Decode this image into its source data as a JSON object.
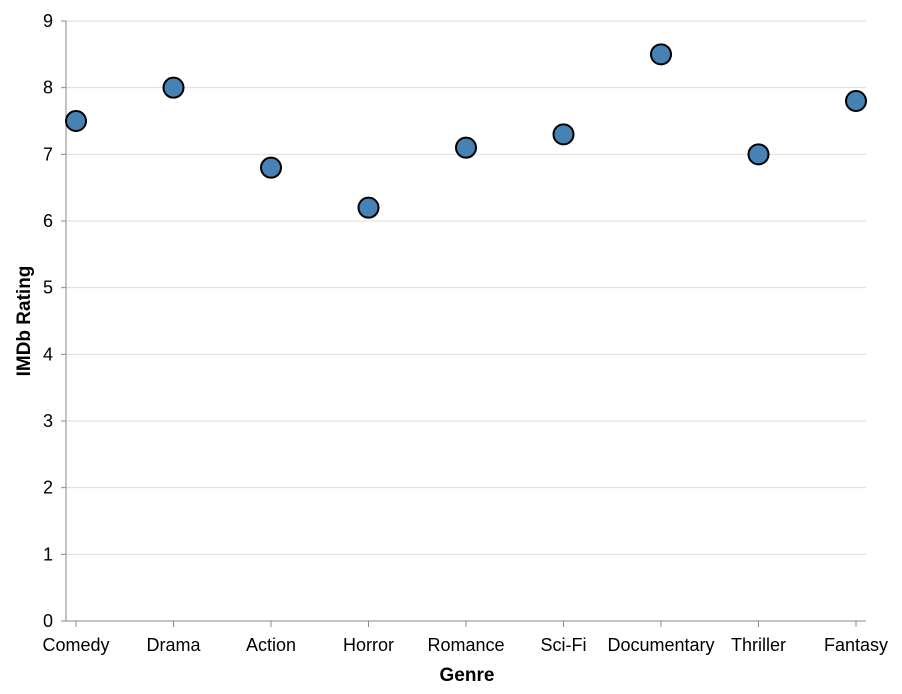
{
  "chart_data": {
    "type": "scatter",
    "title": "",
    "xlabel": "Genre",
    "ylabel": "IMDb Rating",
    "categories": [
      "Comedy",
      "Drama",
      "Action",
      "Horror",
      "Romance",
      "Sci-Fi",
      "Documentary",
      "Thriller",
      "Fantasy"
    ],
    "values": [
      7.5,
      8.0,
      6.8,
      6.2,
      7.1,
      7.3,
      8.5,
      7.0,
      7.8
    ],
    "ylim": [
      0,
      9
    ],
    "yticks": [
      0,
      1,
      2,
      3,
      4,
      5,
      6,
      7,
      8,
      9
    ],
    "grid": true,
    "legend": "none",
    "colors": {
      "point_fill": "#4682b4",
      "point_stroke": "#000000",
      "grid": "#dddddd",
      "axis": "#888888"
    }
  }
}
